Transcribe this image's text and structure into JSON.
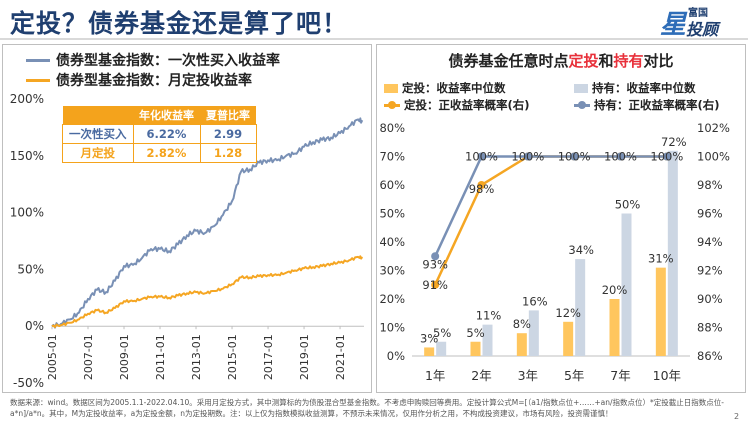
{
  "header": {
    "title": "定投？债券基金还是算了吧！",
    "logo_top": "富国",
    "logo_bottom": "投顾",
    "logo_mark": "星"
  },
  "colors": {
    "blue": "#7990b5",
    "orange": "#f5a623",
    "bar_orange": "#ffc65e",
    "bar_blue": "#ccd6e3",
    "title": "#1f3f70",
    "highlight": "#e8303a"
  },
  "chart_data": [
    {
      "type": "line",
      "legend": [
        "债券型基金指数：一次性买入收益率",
        "债券型基金指数：月定投收益率"
      ],
      "x_ticks": [
        "2005-01",
        "2007-01",
        "2009-01",
        "2011-01",
        "2013-01",
        "2015-01",
        "2017-01",
        "2019-01",
        "2021-01"
      ],
      "y_ticks": [
        "-50%",
        "0%",
        "50%",
        "100%",
        "150%",
        "200%"
      ],
      "ylim": [
        -50,
        200
      ],
      "xlim": [
        2005.0,
        2022.33
      ],
      "series": [
        {
          "name": "一次性买入",
          "x": [
            2005.0,
            2005.5,
            2006.0,
            2006.5,
            2007.0,
            2007.5,
            2008.0,
            2008.5,
            2009.0,
            2009.5,
            2010.0,
            2010.5,
            2011.0,
            2011.5,
            2012.0,
            2012.5,
            2013.0,
            2013.5,
            2014.0,
            2014.5,
            2015.0,
            2015.5,
            2016.0,
            2016.5,
            2017.0,
            2017.5,
            2018.0,
            2018.5,
            2019.0,
            2019.5,
            2020.0,
            2020.5,
            2021.0,
            2021.5,
            2022.0,
            2022.25
          ],
          "values": [
            0,
            2,
            6,
            12,
            24,
            32,
            30,
            40,
            53,
            54,
            60,
            68,
            68,
            66,
            72,
            80,
            84,
            82,
            88,
            98,
            110,
            136,
            138,
            144,
            146,
            146,
            150,
            152,
            158,
            162,
            164,
            166,
            170,
            176,
            182,
            180
          ]
        },
        {
          "name": "月定投",
          "x": [
            2005.0,
            2005.5,
            2006.0,
            2006.5,
            2007.0,
            2007.5,
            2008.0,
            2008.5,
            2009.0,
            2009.5,
            2010.0,
            2010.5,
            2011.0,
            2011.5,
            2012.0,
            2012.5,
            2013.0,
            2013.5,
            2014.0,
            2014.5,
            2015.0,
            2015.5,
            2016.0,
            2016.5,
            2017.0,
            2017.5,
            2018.0,
            2018.5,
            2019.0,
            2019.5,
            2020.0,
            2020.5,
            2021.0,
            2021.5,
            2022.0,
            2022.25
          ],
          "values": [
            0,
            1,
            3,
            6,
            11,
            14,
            12,
            16,
            22,
            22,
            24,
            26,
            26,
            25,
            27,
            29,
            30,
            29,
            31,
            33,
            37,
            43,
            43,
            44,
            45,
            45,
            47,
            49,
            51,
            52,
            53,
            55,
            56,
            58,
            61,
            60
          ]
        }
      ]
    },
    {
      "type": "bar",
      "title": "债券基金任意时点定投和持有对比",
      "title_parts": [
        "债券基金任意时点",
        "定投",
        "和",
        "持有",
        "对比"
      ],
      "legend": [
        "定投：收益率中位数",
        "持有：收益率中位数",
        "定投：正收益率概率(右)",
        "持有：正收益率概率(右)"
      ],
      "categories": [
        "1年",
        "2年",
        "3年",
        "5年",
        "7年",
        "10年"
      ],
      "series": [
        {
          "name": "定投：收益率中位数",
          "values": [
            3,
            5,
            8,
            12,
            20,
            31
          ],
          "labels": [
            "3%",
            "5%",
            "8%",
            "12%",
            "20%",
            "31%"
          ]
        },
        {
          "name": "持有：收益率中位数",
          "values": [
            5,
            11,
            16,
            34,
            50,
            72
          ],
          "labels": [
            "5%",
            "11%",
            "16%",
            "34%",
            "50%",
            "72%"
          ]
        }
      ],
      "line_series": [
        {
          "name": "定投：正收益率概率(右)",
          "values": [
            91,
            98,
            100,
            100,
            100,
            100
          ],
          "labels": [
            "91%",
            "98%",
            "",
            "",
            "",
            ""
          ]
        },
        {
          "name": "持有：正收益率概率(右)",
          "values": [
            93,
            100,
            100,
            100,
            100,
            100
          ],
          "labels": [
            "93%",
            "100%",
            "100%",
            "100%",
            "100%",
            "100%"
          ]
        }
      ],
      "y_left_ticks": [
        "0%",
        "10%",
        "20%",
        "30%",
        "40%",
        "50%",
        "60%",
        "70%",
        "80%"
      ],
      "y_right_ticks": [
        "86%",
        "88%",
        "90%",
        "92%",
        "94%",
        "96%",
        "98%",
        "100%",
        "102%"
      ],
      "ylim_left": [
        0,
        80
      ],
      "ylim_right": [
        86,
        102
      ]
    }
  ],
  "table": {
    "headers": [
      "",
      "年化收益率",
      "夏普比率"
    ],
    "rows": [
      [
        "一次性买入",
        "6.22%",
        "2.99"
      ],
      [
        "月定投",
        "2.82%",
        "1.28"
      ]
    ]
  },
  "footer": "数据来源：wind。数据区间为2005.1.1-2022.04.10。采用月定投方式，其中测算标的为债股混合型基金指数。不考虑申购赎回等费用。定投计算公式M=[（a1/指数点位+……+an/指数点位）*定投截止日指数点位-a*n]/a*n。其中，M为定投收益率，a为定投金额，n为定投期数。注：以上仅为指数模拟收益测算，不预示未来情况，仅用作分析之用，不构成投资建议，市场有风险，投资需谨慎！",
  "page_number": "2"
}
